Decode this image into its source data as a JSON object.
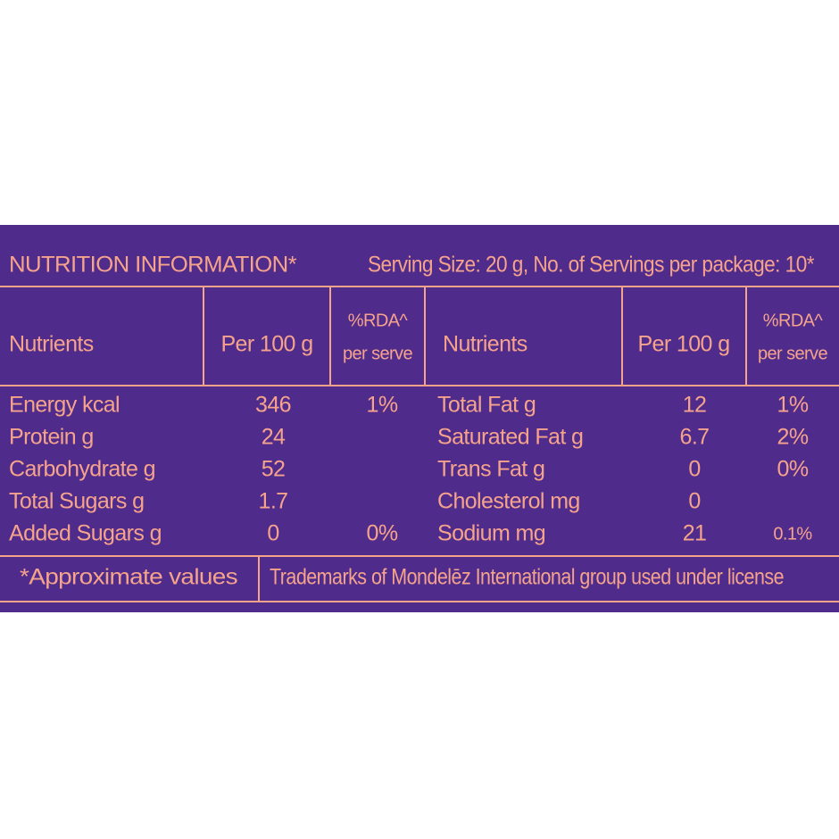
{
  "header": {
    "title": "NUTRITION INFORMATION*",
    "serving": "Serving Size: 20 g, No. of Servings per package: 10*"
  },
  "table": {
    "columns": [
      "Nutrients",
      "Per 100 g",
      [
        "%RDA^",
        "per serve"
      ],
      "Nutrients",
      "Per 100 g",
      [
        "%RDA^",
        "per serve"
      ]
    ],
    "rows": [
      [
        "Energy kcal",
        "346",
        "1%",
        "Total Fat g",
        "12",
        "1%"
      ],
      [
        "Protein g",
        "24",
        null,
        "Saturated Fat g",
        "6.7",
        "2%"
      ],
      [
        "Carbohydrate g",
        "52",
        null,
        "Trans Fat g",
        "0",
        "0%"
      ],
      [
        "Total Sugars g",
        "1.7",
        null,
        "Cholesterol mg",
        "0",
        null
      ],
      [
        "Added Sugars g",
        "0",
        "0%",
        "Sodium mg",
        "21",
        "0.1%"
      ]
    ]
  },
  "footer": {
    "note": "*Approximate values",
    "trademark": "Trademarks of Mondelēz International group used under license"
  }
}
